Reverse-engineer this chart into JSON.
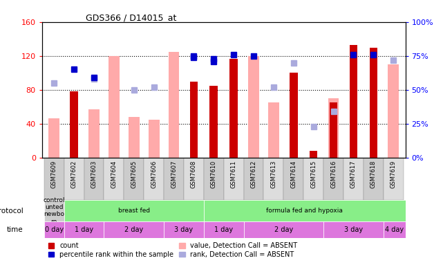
{
  "title": "GDS366 / D14015_at",
  "samples": [
    "GSM7609",
    "GSM7602",
    "GSM7603",
    "GSM7604",
    "GSM7605",
    "GSM7606",
    "GSM7607",
    "GSM7608",
    "GSM7610",
    "GSM7611",
    "GSM7612",
    "GSM7613",
    "GSM7614",
    "GSM7615",
    "GSM7616",
    "GSM7617",
    "GSM7618",
    "GSM7619"
  ],
  "count_values": [
    0,
    78,
    0,
    0,
    0,
    0,
    0,
    90,
    85,
    117,
    0,
    0,
    100,
    8,
    65,
    133,
    130,
    0
  ],
  "value_absent": [
    47,
    0,
    57,
    120,
    48,
    45,
    125,
    0,
    0,
    0,
    120,
    65,
    0,
    0,
    70,
    0,
    0,
    110
  ],
  "rank_absent": [
    55,
    0,
    58,
    0,
    50,
    52,
    0,
    0,
    0,
    0,
    0,
    52,
    70,
    23,
    34,
    0,
    0,
    72
  ],
  "percentile_rank": [
    0,
    65,
    59,
    0,
    0,
    0,
    0,
    74,
    71,
    0,
    75,
    0,
    0,
    0,
    0,
    0,
    0,
    0
  ],
  "count_rank_pct": [
    0,
    0,
    0,
    0,
    0,
    0,
    0,
    75,
    73,
    76,
    0,
    0,
    0,
    0,
    0,
    76,
    76,
    0
  ],
  "ylim_left": [
    0,
    160
  ],
  "ylim_right": [
    0,
    100
  ],
  "yticks_left": [
    0,
    40,
    80,
    120,
    160
  ],
  "yticks_right": [
    0,
    25,
    50,
    75,
    100
  ],
  "ytick_labels_left": [
    "0",
    "40",
    "80",
    "120",
    "160"
  ],
  "ytick_labels_right": [
    "0%",
    "25%",
    "50%",
    "75%",
    "100%"
  ],
  "bar_width": 0.4,
  "color_count": "#cc0000",
  "color_value_absent": "#ffaaaa",
  "color_rank_absent": "#aaaadd",
  "color_percentile": "#0000cc",
  "bg_colors": [
    "#cccccc",
    "#dddddd"
  ],
  "legend_items": [
    {
      "label": "count",
      "color": "#cc0000"
    },
    {
      "label": "percentile rank within the sample",
      "color": "#0000cc"
    },
    {
      "label": "value, Detection Call = ABSENT",
      "color": "#ffaaaa"
    },
    {
      "label": "rank, Detection Call = ABSENT",
      "color": "#aaaadd"
    }
  ]
}
